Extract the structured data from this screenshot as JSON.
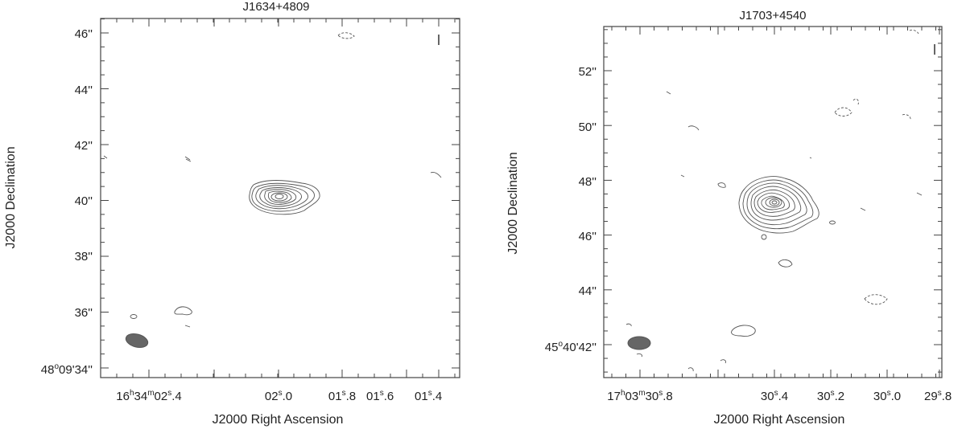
{
  "chart_data": [
    {
      "type": "contour",
      "title": "J1634+4809",
      "xlabel": "J2000 Right Ascension",
      "ylabel": "J2000 Declination",
      "x_ticks": [
        {
          "pre": "16",
          "sup1": "h",
          "mid": "34",
          "sup2": "m",
          "sec": "02",
          "sup3": "s",
          "frac": ".4"
        },
        {
          "pre": "",
          "sup1": "",
          "mid": "",
          "sup2": "",
          "sec": "02",
          "sup3": "s",
          "frac": ".0"
        },
        {
          "pre": "",
          "sup1": "",
          "mid": "",
          "sup2": "",
          "sec": "01",
          "sup3": "s",
          "frac": ".8"
        },
        {
          "pre": "",
          "sup1": "",
          "mid": "",
          "sup2": "",
          "sec": "01",
          "sup3": "s",
          "frac": ".6"
        },
        {
          "pre": "",
          "sup1": "",
          "mid": "",
          "sup2": "",
          "sec": "01",
          "sup3": "s",
          "frac": ".4"
        }
      ],
      "y_ticks": [
        "46''",
        "44''",
        "42''",
        "40''",
        "38''",
        "36''"
      ],
      "y_bottom_label": {
        "pre": "48",
        "deg": "o",
        "rest": "09'34''"
      },
      "ra_seconds": [
        2.4,
        2.0,
        1.8,
        1.6,
        1.4
      ],
      "dec_arcsec": [
        46,
        44,
        42,
        40,
        38,
        36,
        34
      ],
      "source_peak": {
        "ra_s": 1.95,
        "dec_arcsec": 40.1
      },
      "contour_levels": 8,
      "beam": "filled ellipse, lower-left"
    },
    {
      "type": "contour",
      "title": "J1703+4540",
      "xlabel": "J2000 Right Ascension",
      "ylabel": "J2000 Declination",
      "x_ticks": [
        {
          "pre": "17",
          "sup1": "h",
          "mid": "03",
          "sup2": "m",
          "sec": "30",
          "sup3": "s",
          "frac": ".8"
        },
        {
          "pre": "",
          "sup1": "",
          "mid": "",
          "sup2": "",
          "sec": "30",
          "sup3": "s",
          "frac": ".4"
        },
        {
          "pre": "",
          "sup1": "",
          "mid": "",
          "sup2": "",
          "sec": "30",
          "sup3": "s",
          "frac": ".2"
        },
        {
          "pre": "",
          "sup1": "",
          "mid": "",
          "sup2": "",
          "sec": "30",
          "sup3": "s",
          "frac": ".0"
        },
        {
          "pre": "",
          "sup1": "",
          "mid": "",
          "sup2": "",
          "sec": "29",
          "sup3": "s",
          "frac": ".8"
        }
      ],
      "y_ticks": [
        "52''",
        "50''",
        "48''",
        "46''",
        "44''"
      ],
      "y_bottom_label": {
        "pre": "45",
        "deg": "o",
        "rest": "40'42''"
      },
      "ra_seconds": [
        30.8,
        30.4,
        30.2,
        30.0,
        29.8
      ],
      "dec_arcsec": [
        52,
        50,
        48,
        46,
        44,
        42
      ],
      "source_peak": {
        "ra_s": 30.4,
        "dec_arcsec": 47.2
      },
      "contour_levels": 10,
      "beam": "filled ellipse, lower-left"
    }
  ]
}
